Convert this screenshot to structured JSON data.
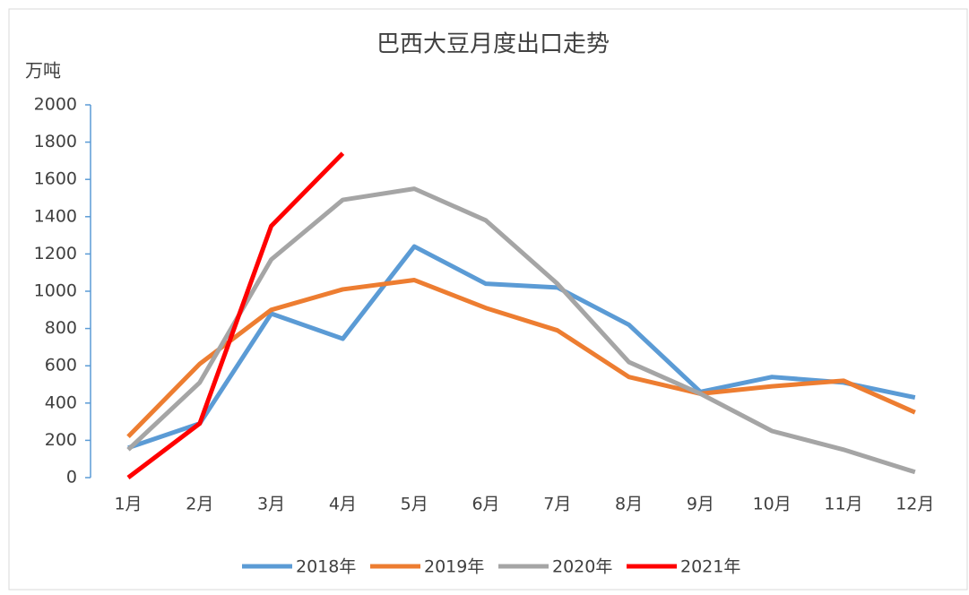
{
  "chart_data": {
    "type": "line",
    "title": "巴西大豆月度出口走势",
    "y_label": "万吨",
    "categories": [
      "1月",
      "2月",
      "3月",
      "4月",
      "5月",
      "6月",
      "7月",
      "8月",
      "9月",
      "10月",
      "11月",
      "12月"
    ],
    "series": [
      {
        "name": "2018年",
        "color": "#5b9bd5",
        "values": [
          160,
          290,
          880,
          745,
          1240,
          1040,
          1020,
          820,
          460,
          540,
          510,
          430
        ]
      },
      {
        "name": "2019年",
        "color": "#ed7d31",
        "values": [
          220,
          610,
          900,
          1010,
          1060,
          910,
          790,
          540,
          450,
          490,
          520,
          350
        ]
      },
      {
        "name": "2020年",
        "color": "#a5a5a5",
        "values": [
          150,
          510,
          1170,
          1490,
          1550,
          1380,
          1040,
          620,
          450,
          250,
          150,
          30
        ]
      },
      {
        "name": "2021年",
        "color": "#ff0000",
        "values": [
          0,
          290,
          1350,
          1740,
          null,
          null,
          null,
          null,
          null,
          null,
          null,
          null
        ]
      }
    ],
    "ylim": [
      0,
      2000
    ],
    "yticks": [
      0,
      200,
      400,
      600,
      800,
      1000,
      1200,
      1400,
      1600,
      1800,
      2000
    ]
  }
}
